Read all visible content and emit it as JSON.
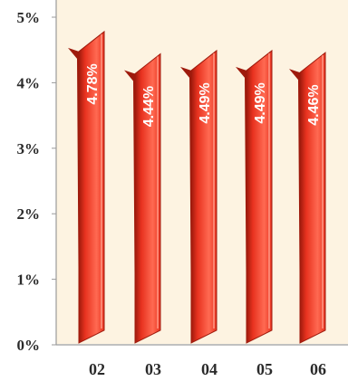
{
  "chart_data": {
    "type": "bar",
    "title": "",
    "xlabel": "",
    "ylabel": "",
    "categories": [
      "02",
      "03",
      "04",
      "05",
      "06"
    ],
    "values": [
      4.78,
      4.44,
      4.49,
      4.49,
      4.46
    ],
    "data_labels": [
      "4.78%",
      "4.44%",
      "4.49%",
      "4.49%",
      "4.46%"
    ],
    "ylim": [
      0,
      5
    ],
    "y_ticks": [
      0,
      1,
      2,
      3,
      4,
      5
    ],
    "y_tick_labels": [
      "0%",
      "1%",
      "2%",
      "3%",
      "4%",
      "5%"
    ],
    "grid": false,
    "legend": "none"
  },
  "colors": {
    "plot_background": "#fdf3e1",
    "bar_fill": "#e8321f",
    "bar_dark": "#9e1a0c",
    "bar_light": "#ff6a52",
    "axis": "#9a9a9a",
    "text": "#2a2a2a"
  }
}
